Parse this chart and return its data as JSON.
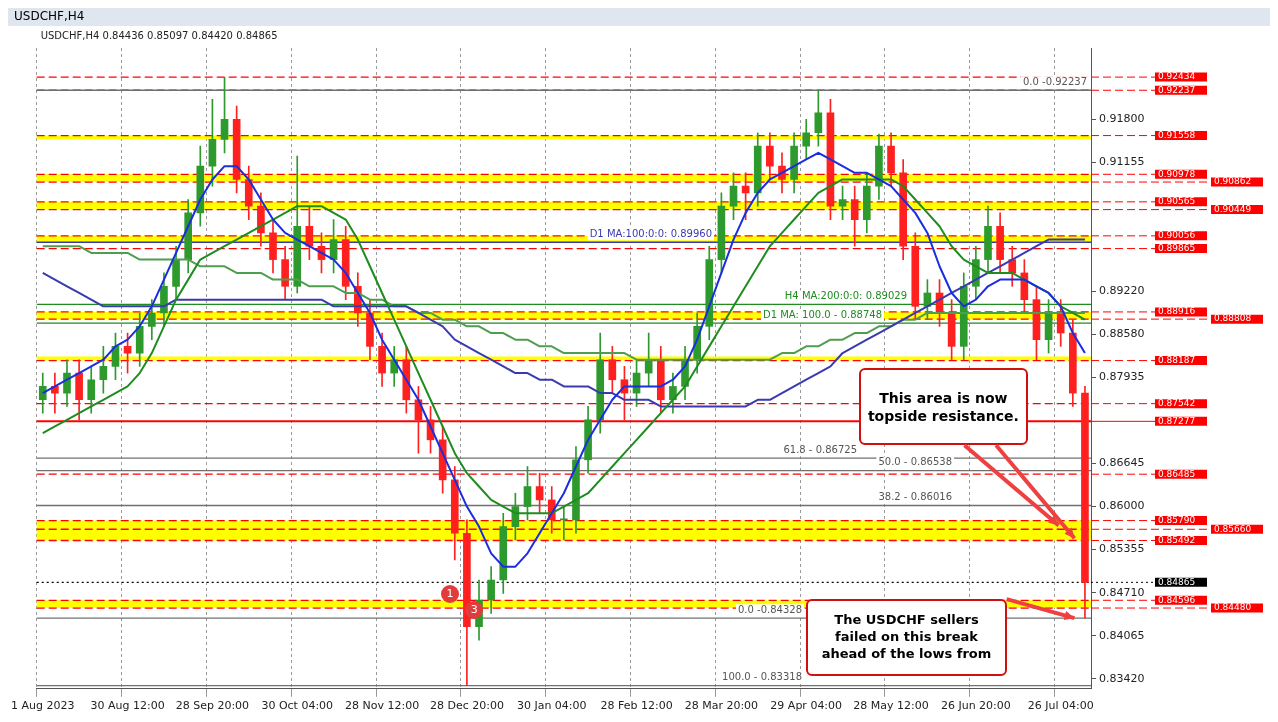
{
  "chart_data": {
    "type": "candlestick",
    "title": "USDCHF,H4",
    "subtitle": "USDCHF,H4 0.84436 0.85097 0.84420 0.84865",
    "categories": [
      "1 Aug 2023",
      null,
      null,
      null,
      null,
      null,
      null,
      "30 Aug 12:00",
      null,
      null,
      null,
      null,
      null,
      null,
      "28 Sep 20:00",
      null,
      null,
      null,
      null,
      null,
      null,
      "30 Oct 04:00",
      null,
      null,
      null,
      null,
      null,
      null,
      "28 Nov 12:00",
      null,
      null,
      null,
      null,
      null,
      null,
      "28 Dec 20:00",
      null,
      null,
      null,
      null,
      null,
      null,
      "30 Jan 04:00",
      null,
      null,
      null,
      null,
      null,
      null,
      "28 Feb 12:00",
      null,
      null,
      null,
      null,
      null,
      null,
      "28 Mar 20:00",
      null,
      null,
      null,
      null,
      null,
      null,
      "29 Apr 04:00",
      null,
      null,
      null,
      null,
      null,
      null,
      "28 May 12:00",
      null,
      null,
      null,
      null,
      null,
      null,
      "26 Jun 20:00",
      null,
      null,
      null,
      null,
      null,
      null,
      "26 Jul 04:00",
      null,
      null
    ],
    "ohlc": [
      [
        0.876,
        0.88,
        0.874,
        0.878
      ],
      [
        0.878,
        0.88,
        0.874,
        0.877
      ],
      [
        0.877,
        0.882,
        0.875,
        0.88
      ],
      [
        0.88,
        0.882,
        0.873,
        0.876
      ],
      [
        0.876,
        0.881,
        0.874,
        0.879
      ],
      [
        0.879,
        0.884,
        0.877,
        0.881
      ],
      [
        0.881,
        0.886,
        0.879,
        0.884
      ],
      [
        0.884,
        0.886,
        0.88,
        0.883
      ],
      [
        0.883,
        0.889,
        0.881,
        0.887
      ],
      [
        0.887,
        0.891,
        0.885,
        0.889
      ],
      [
        0.889,
        0.895,
        0.887,
        0.893
      ],
      [
        0.893,
        0.899,
        0.891,
        0.897
      ],
      [
        0.897,
        0.906,
        0.895,
        0.904
      ],
      [
        0.904,
        0.914,
        0.902,
        0.911
      ],
      [
        0.911,
        0.921,
        0.908,
        0.915
      ],
      [
        0.915,
        0.9243,
        0.913,
        0.918
      ],
      [
        0.918,
        0.92,
        0.907,
        0.909
      ],
      [
        0.909,
        0.911,
        0.903,
        0.905
      ],
      [
        0.905,
        0.907,
        0.899,
        0.901
      ],
      [
        0.901,
        0.903,
        0.895,
        0.897
      ],
      [
        0.897,
        0.899,
        0.891,
        0.893
      ],
      [
        0.893,
        0.9125,
        0.892,
        0.902
      ],
      [
        0.902,
        0.905,
        0.897,
        0.899
      ],
      [
        0.899,
        0.901,
        0.895,
        0.897
      ],
      [
        0.897,
        0.903,
        0.895,
        0.9
      ],
      [
        0.9,
        0.902,
        0.891,
        0.893
      ],
      [
        0.893,
        0.895,
        0.887,
        0.889
      ],
      [
        0.889,
        0.891,
        0.882,
        0.884
      ],
      [
        0.884,
        0.886,
        0.878,
        0.88
      ],
      [
        0.88,
        0.884,
        0.878,
        0.882
      ],
      [
        0.882,
        0.884,
        0.874,
        0.876
      ],
      [
        0.876,
        0.878,
        0.868,
        0.873
      ],
      [
        0.873,
        0.875,
        0.868,
        0.87
      ],
      [
        0.87,
        0.872,
        0.862,
        0.864
      ],
      [
        0.864,
        0.866,
        0.852,
        0.856
      ],
      [
        0.856,
        0.858,
        0.83318,
        0.842
      ],
      [
        0.842,
        0.849,
        0.84,
        0.846
      ],
      [
        0.846,
        0.851,
        0.844,
        0.849
      ],
      [
        0.849,
        0.859,
        0.847,
        0.857
      ],
      [
        0.857,
        0.862,
        0.855,
        0.86
      ],
      [
        0.86,
        0.866,
        0.858,
        0.863
      ],
      [
        0.863,
        0.865,
        0.859,
        0.861
      ],
      [
        0.861,
        0.863,
        0.856,
        0.858
      ],
      [
        0.858,
        0.86,
        0.855,
        0.858
      ],
      [
        0.858,
        0.869,
        0.856,
        0.867
      ],
      [
        0.867,
        0.875,
        0.865,
        0.873
      ],
      [
        0.873,
        0.886,
        0.871,
        0.882
      ],
      [
        0.882,
        0.884,
        0.877,
        0.879
      ],
      [
        0.879,
        0.881,
        0.873,
        0.877
      ],
      [
        0.877,
        0.882,
        0.875,
        0.88
      ],
      [
        0.88,
        0.886,
        0.878,
        0.882
      ],
      [
        0.882,
        0.884,
        0.874,
        0.876
      ],
      [
        0.876,
        0.88,
        0.874,
        0.878
      ],
      [
        0.878,
        0.884,
        0.876,
        0.882
      ],
      [
        0.882,
        0.889,
        0.88,
        0.887
      ],
      [
        0.887,
        0.899,
        0.885,
        0.897
      ],
      [
        0.897,
        0.907,
        0.895,
        0.905
      ],
      [
        0.905,
        0.91,
        0.903,
        0.908
      ],
      [
        0.908,
        0.91,
        0.903,
        0.907
      ],
      [
        0.907,
        0.916,
        0.905,
        0.914
      ],
      [
        0.914,
        0.916,
        0.909,
        0.911
      ],
      [
        0.911,
        0.913,
        0.907,
        0.909
      ],
      [
        0.909,
        0.916,
        0.907,
        0.914
      ],
      [
        0.914,
        0.918,
        0.912,
        0.916
      ],
      [
        0.916,
        0.92237,
        0.914,
        0.919
      ],
      [
        0.919,
        0.921,
        0.903,
        0.905
      ],
      [
        0.905,
        0.908,
        0.903,
        0.906
      ],
      [
        0.906,
        0.908,
        0.899,
        0.903
      ],
      [
        0.903,
        0.91,
        0.901,
        0.908
      ],
      [
        0.908,
        0.9158,
        0.906,
        0.914
      ],
      [
        0.914,
        0.916,
        0.908,
        0.91
      ],
      [
        0.91,
        0.912,
        0.897,
        0.899
      ],
      [
        0.899,
        0.901,
        0.888,
        0.89
      ],
      [
        0.89,
        0.894,
        0.888,
        0.892
      ],
      [
        0.892,
        0.894,
        0.887,
        0.889
      ],
      [
        0.889,
        0.891,
        0.882,
        0.884
      ],
      [
        0.884,
        0.895,
        0.882,
        0.893
      ],
      [
        0.893,
        0.899,
        0.891,
        0.897
      ],
      [
        0.897,
        0.905,
        0.895,
        0.902
      ],
      [
        0.902,
        0.904,
        0.895,
        0.897
      ],
      [
        0.897,
        0.899,
        0.893,
        0.895
      ],
      [
        0.895,
        0.897,
        0.889,
        0.891
      ],
      [
        0.891,
        0.893,
        0.882,
        0.885
      ],
      [
        0.885,
        0.891,
        0.883,
        0.889
      ],
      [
        0.889,
        0.891,
        0.884,
        0.886
      ],
      [
        0.886,
        0.888,
        0.875,
        0.877
      ],
      [
        0.877,
        0.878,
        0.84328,
        0.84865
      ]
    ],
    "series": [
      {
        "type": "line",
        "color": "#1a2ee0",
        "values": [
          0.877,
          0.878,
          0.879,
          0.88,
          0.881,
          0.882,
          0.884,
          0.885,
          0.887,
          0.89,
          0.894,
          0.898,
          0.902,
          0.906,
          0.909,
          0.911,
          0.911,
          0.909,
          0.906,
          0.903,
          0.901,
          0.9,
          0.899,
          0.898,
          0.897,
          0.895,
          0.892,
          0.889,
          0.885,
          0.882,
          0.879,
          0.876,
          0.872,
          0.868,
          0.864,
          0.86,
          0.857,
          0.853,
          0.851,
          0.851,
          0.853,
          0.856,
          0.859,
          0.862,
          0.866,
          0.87,
          0.873,
          0.876,
          0.878,
          0.878,
          0.878,
          0.878,
          0.879,
          0.881,
          0.885,
          0.89,
          0.895,
          0.9,
          0.904,
          0.907,
          0.909,
          0.91,
          0.911,
          0.912,
          0.913,
          0.912,
          0.911,
          0.91,
          0.91,
          0.909,
          0.908,
          0.906,
          0.904,
          0.901,
          0.896,
          0.892,
          0.89,
          0.891,
          0.893,
          0.894,
          0.894,
          0.894,
          0.893,
          0.892,
          0.89,
          0.886,
          0.883
        ]
      },
      {
        "type": "line",
        "color": "#1e8c1e",
        "values": [
          0.871,
          0.872,
          0.873,
          0.874,
          0.875,
          0.876,
          0.877,
          0.878,
          0.88,
          0.883,
          0.887,
          0.891,
          0.894,
          0.897,
          0.898,
          0.899,
          0.9,
          0.901,
          0.902,
          0.903,
          0.904,
          0.905,
          0.905,
          0.905,
          0.904,
          0.903,
          0.9,
          0.896,
          0.892,
          0.888,
          0.884,
          0.88,
          0.876,
          0.872,
          0.868,
          0.865,
          0.863,
          0.861,
          0.86,
          0.859,
          0.859,
          0.859,
          0.859,
          0.86,
          0.861,
          0.862,
          0.864,
          0.866,
          0.868,
          0.87,
          0.872,
          0.874,
          0.876,
          0.878,
          0.881,
          0.884,
          0.887,
          0.89,
          0.893,
          0.896,
          0.899,
          0.901,
          0.903,
          0.905,
          0.907,
          0.908,
          0.909,
          0.909,
          0.909,
          0.909,
          0.909,
          0.908,
          0.906,
          0.904,
          0.902,
          0.899,
          0.897,
          0.896,
          0.895,
          0.895,
          0.895,
          0.894,
          0.893,
          0.892,
          0.89,
          0.889,
          0.888
        ]
      },
      {
        "type": "line",
        "color": "#3a3ab0",
        "values": [
          0.895,
          0.894,
          0.893,
          0.892,
          0.891,
          0.89,
          0.89,
          0.89,
          0.89,
          0.89,
          0.89,
          0.891,
          0.891,
          0.891,
          0.891,
          0.891,
          0.891,
          0.891,
          0.891,
          0.891,
          0.891,
          0.891,
          0.891,
          0.891,
          0.89,
          0.89,
          0.89,
          0.89,
          0.89,
          0.89,
          0.89,
          0.889,
          0.888,
          0.887,
          0.885,
          0.884,
          0.883,
          0.882,
          0.881,
          0.88,
          0.88,
          0.879,
          0.879,
          0.878,
          0.878,
          0.878,
          0.877,
          0.877,
          0.876,
          0.876,
          0.876,
          0.875,
          0.875,
          0.875,
          0.875,
          0.875,
          0.875,
          0.875,
          0.875,
          0.876,
          0.876,
          0.877,
          0.878,
          0.879,
          0.88,
          0.881,
          0.883,
          0.884,
          0.885,
          0.886,
          0.887,
          0.888,
          0.889,
          0.89,
          0.891,
          0.892,
          0.893,
          0.894,
          0.895,
          0.896,
          0.897,
          0.898,
          0.899,
          0.9,
          0.9,
          0.9,
          0.9
        ]
      },
      {
        "type": "line",
        "color": "#4f9e4f",
        "values": [
          0.899,
          0.899,
          0.899,
          0.899,
          0.898,
          0.898,
          0.898,
          0.898,
          0.897,
          0.897,
          0.897,
          0.897,
          0.897,
          0.896,
          0.896,
          0.896,
          0.895,
          0.895,
          0.895,
          0.894,
          0.894,
          0.894,
          0.893,
          0.893,
          0.893,
          0.892,
          0.892,
          0.891,
          0.891,
          0.89,
          0.89,
          0.889,
          0.889,
          0.888,
          0.888,
          0.887,
          0.887,
          0.886,
          0.886,
          0.885,
          0.885,
          0.884,
          0.884,
          0.883,
          0.883,
          0.883,
          0.883,
          0.883,
          0.883,
          0.882,
          0.882,
          0.882,
          0.882,
          0.882,
          0.882,
          0.882,
          0.882,
          0.882,
          0.882,
          0.882,
          0.882,
          0.883,
          0.883,
          0.884,
          0.884,
          0.885,
          0.885,
          0.886,
          0.886,
          0.887,
          0.887,
          0.888,
          0.888,
          0.889,
          0.889,
          0.889,
          0.889,
          0.889,
          0.889,
          0.889,
          0.889,
          0.889,
          0.889,
          0.889,
          0.889,
          0.889,
          0.889
        ]
      }
    ],
    "ylim": [
      0.8327,
      0.9287
    ],
    "yticks": [
      {
        "value": 0.918,
        "label": "0.91800"
      },
      {
        "value": 0.91155,
        "label": "0.91155"
      },
      {
        "value": 0.8922,
        "label": "0.89220"
      },
      {
        "value": 0.8858,
        "label": "0.88580"
      },
      {
        "value": 0.87935,
        "label": "0.87935"
      },
      {
        "value": 0.86645,
        "label": "0.86645"
      },
      {
        "value": 0.86,
        "label": "0.86000"
      },
      {
        "value": 0.85355,
        "label": "0.85355"
      },
      {
        "value": 0.8471,
        "label": "0.84710"
      },
      {
        "value": 0.84065,
        "label": "0.84065"
      },
      {
        "value": 0.8342,
        "label": "0.83420"
      }
    ],
    "ref_lines": [
      {
        "axis": "y",
        "value": 0.92434,
        "label": "0.92434",
        "color": "#ff0000",
        "line_style": "dashed"
      },
      {
        "axis": "y",
        "value": 0.92237,
        "label": "0.92237",
        "color": "#ff0000",
        "line_style": "dashed"
      },
      {
        "axis": "y",
        "value": 0.91558,
        "label": "0.91558",
        "color": "#ff0000",
        "line_style": "dashed"
      },
      {
        "axis": "y",
        "value": 0.90978,
        "label": "0.90978",
        "color": "#ff0000",
        "line_style": "dashed"
      },
      {
        "axis": "y",
        "value": 0.90862,
        "label": "0.90862",
        "color": "#ff0000",
        "line_style": "dashed"
      },
      {
        "axis": "y",
        "value": 0.90565,
        "label": "0.90565",
        "color": "#ff0000",
        "line_style": "dashed"
      },
      {
        "axis": "y",
        "value": 0.90449,
        "label": "0.90449",
        "color": "#ff0000",
        "line_style": "dashed"
      },
      {
        "axis": "y",
        "value": 0.90056,
        "label": "0.90056",
        "color": "#ff0000",
        "line_style": "dashed"
      },
      {
        "axis": "y",
        "value": 0.89865,
        "label": "0.89865",
        "color": "#ff0000",
        "line_style": "dashed"
      },
      {
        "axis": "y",
        "value": 0.88916,
        "label": "0.88916",
        "color": "#ff0000",
        "line_style": "dashed"
      },
      {
        "axis": "y",
        "value": 0.88808,
        "label": "0.88808",
        "color": "#ff0000",
        "line_style": "dashed"
      },
      {
        "axis": "y",
        "value": 0.88187,
        "label": "0.88187",
        "color": "#ff0000",
        "line_style": "dashed"
      },
      {
        "axis": "y",
        "value": 0.87542,
        "label": "0.87542",
        "color": "#ff0000",
        "line_style": "dashed"
      },
      {
        "axis": "y",
        "value": 0.87277,
        "label": "0.87277",
        "color": "#ff0000",
        "line_style": "solid"
      },
      {
        "axis": "y",
        "value": 0.86485,
        "label": "0.86485",
        "color": "#ff0000",
        "line_style": "dashed"
      },
      {
        "axis": "y",
        "value": 0.8579,
        "label": "0.85790",
        "color": "#ff0000",
        "line_style": "dashed"
      },
      {
        "axis": "y",
        "value": 0.8566,
        "label": "0.85660",
        "color": "#ff0000",
        "line_style": "dashed"
      },
      {
        "axis": "y",
        "value": 0.85492,
        "label": "0.85492",
        "color": "#ff0000",
        "line_style": "dashed"
      },
      {
        "axis": "y",
        "value": 0.84865,
        "label": "0.84865",
        "color": "#000000",
        "line_style": "dotted"
      },
      {
        "axis": "y",
        "value": 0.84596,
        "label": "0.84596",
        "color": "#ff0000",
        "line_style": "dashed"
      },
      {
        "axis": "y",
        "value": 0.8448,
        "label": "0.84480",
        "color": "#ff0000",
        "line_style": "dashed"
      },
      {
        "axis": "y",
        "value": 0.92237,
        "color": "#707070",
        "line_style": "solid"
      },
      {
        "axis": "y",
        "value": 0.8996,
        "label": "D1 MA:100:0:0: 0.89960",
        "color": "#3a3ab0",
        "line_style": "solid"
      },
      {
        "axis": "y",
        "value": 0.89029,
        "label": "H4 MA:200:0:0: 0.89029",
        "color": "#1e8c1e",
        "line_style": "solid"
      },
      {
        "axis": "y",
        "value": 0.88748,
        "label": "D1 MA: 100.0 - 0.88748",
        "color": "#1e8c1e",
        "line_style": "solid"
      },
      {
        "axis": "y",
        "value": 0.86725,
        "color": "#707070",
        "line_style": "solid"
      },
      {
        "axis": "y",
        "value": 0.86538,
        "color": "#707070",
        "line_style": "solid"
      },
      {
        "axis": "y",
        "value": 0.86016,
        "color": "#707070",
        "line_style": "solid"
      },
      {
        "axis": "y",
        "value": 0.84328,
        "color": "#707070",
        "line_style": "solid"
      },
      {
        "axis": "y",
        "value": 0.83318,
        "color": "#707070",
        "line_style": "solid"
      }
    ],
    "bands": [
      {
        "axis": "y",
        "from": 0.915,
        "to": 0.91558,
        "color": "#ffff00"
      },
      {
        "axis": "y",
        "from": 0.90862,
        "to": 0.90978,
        "color": "#ffff00"
      },
      {
        "axis": "y",
        "from": 0.90449,
        "to": 0.90565,
        "color": "#ffff00"
      },
      {
        "axis": "y",
        "from": 0.8996,
        "to": 0.90056,
        "color": "#ffff00"
      },
      {
        "axis": "y",
        "from": 0.88808,
        "to": 0.88916,
        "color": "#ffff00"
      },
      {
        "axis": "y",
        "from": 0.88187,
        "to": 0.8825,
        "color": "#ffff00"
      },
      {
        "axis": "y",
        "from": 0.85492,
        "to": 0.8579,
        "color": "#ffff00"
      },
      {
        "axis": "y",
        "from": 0.8448,
        "to": 0.84596,
        "color": "#ffff00"
      }
    ],
    "annotations": [
      "This area is now topside resistance.",
      {
        "text": "The USDCHF sellers failed on this break ahead of the lows from",
        "y": 0.84328
      },
      "1",
      "3",
      {
        "text": "0.0 -0.92237",
        "y": 0.92237
      },
      {
        "text": "61.8 - 0.86725",
        "y": 0.86725
      },
      {
        "text": "50.0 - 0.86538",
        "y": 0.86538
      },
      {
        "text": "38.2 - 0.86016",
        "y": 0.86016
      },
      {
        "text": "0.0 -0.84328",
        "y": 0.84328
      },
      {
        "text": "100.0 - 0.83318",
        "y": 0.83318
      }
    ],
    "grid": "x",
    "marker": "none"
  }
}
